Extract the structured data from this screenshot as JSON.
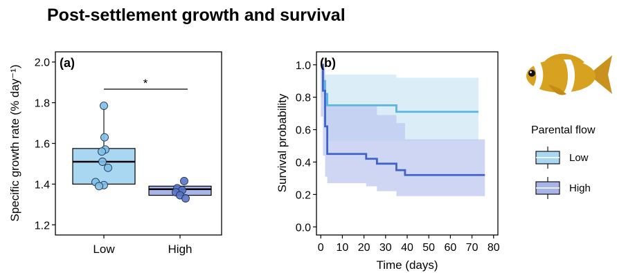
{
  "title": "Post-settlement growth and survival",
  "colors": {
    "low_fill": "#a9d7f2",
    "low_point": "#7fc1e8",
    "low_line": "#5ab4e6",
    "high_fill": "#a6b4e6",
    "high_point": "#5a74c8",
    "high_line": "#3f63c9",
    "low_ci": "#cfe8f6",
    "high_ci": "#bfc8ef"
  },
  "chart_data": [
    {
      "type": "box",
      "panel_label": "(a)",
      "ylabel": "Specific growth rate (% day⁻¹)",
      "xlabel": "",
      "ylim": [
        1.15,
        2.05
      ],
      "yticks": [
        1.2,
        1.4,
        1.6,
        1.8,
        2.0
      ],
      "ytick_labels": [
        "1.2",
        "1.4",
        "1.6",
        "1.8",
        "2.0"
      ],
      "categories": [
        "Low",
        "High"
      ],
      "significance": "*",
      "boxes": [
        {
          "name": "Low",
          "min": 1.39,
          "q1": 1.4,
          "median": 1.51,
          "q3": 1.575,
          "max": 1.78,
          "points": [
            1.785,
            1.63,
            1.57,
            1.56,
            1.51,
            1.48,
            1.41,
            1.395,
            1.39
          ]
        },
        {
          "name": "High",
          "min": 1.345,
          "q1": 1.345,
          "median": 1.375,
          "q3": 1.39,
          "max": 1.39,
          "points": [
            1.415,
            1.38,
            1.37,
            1.36,
            1.345,
            1.33
          ]
        }
      ]
    },
    {
      "type": "line",
      "subtype": "survival-step",
      "panel_label": "(b)",
      "xlabel": "Time (days)",
      "ylabel": "Survival probability",
      "xlim": [
        -2,
        82
      ],
      "ylim": [
        -0.05,
        1.08
      ],
      "xticks": [
        0,
        10,
        20,
        30,
        40,
        50,
        60,
        70,
        80
      ],
      "xtick_labels": [
        "0",
        "10",
        "20",
        "30",
        "40",
        "50",
        "60",
        "70",
        "80"
      ],
      "yticks": [
        0.0,
        0.2,
        0.4,
        0.6,
        0.8,
        1.0
      ],
      "ytick_labels": [
        "0.0",
        "0.2",
        "0.4",
        "0.6",
        "0.8",
        "1.0"
      ],
      "legend_title": "Parental flow",
      "legend_position": "right",
      "series": [
        {
          "name": "Low",
          "x": [
            0,
            1,
            2,
            3,
            35,
            73
          ],
          "y": [
            1.0,
            0.9,
            0.82,
            0.75,
            0.71,
            0.71
          ],
          "ci_upper": [
            1.0,
            0.98,
            0.94,
            0.94,
            0.92,
            0.92
          ],
          "ci_lower": [
            1.0,
            0.8,
            0.72,
            0.62,
            0.53,
            0.53
          ]
        },
        {
          "name": "High",
          "x": [
            0,
            1,
            2,
            3,
            21,
            26,
            35,
            39,
            76
          ],
          "y": [
            1.0,
            0.84,
            0.62,
            0.45,
            0.42,
            0.39,
            0.35,
            0.32,
            0.32
          ],
          "ci_upper": [
            1.0,
            0.98,
            0.8,
            0.75,
            0.75,
            0.69,
            0.64,
            0.54,
            0.54
          ],
          "ci_lower": [
            1.0,
            0.68,
            0.44,
            0.31,
            0.27,
            0.25,
            0.22,
            0.19,
            0.19
          ]
        }
      ]
    }
  ]
}
